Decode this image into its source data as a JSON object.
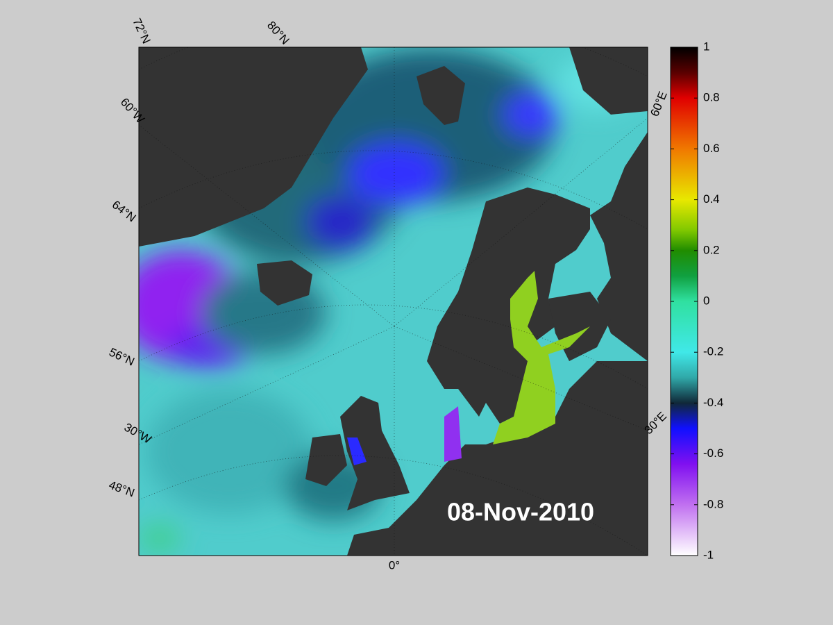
{
  "map": {
    "date": "08-Nov-2010",
    "graticule_labels": [
      "72°N",
      "80°N",
      "60°W",
      "64°N",
      "56°N",
      "30°W",
      "48°N",
      "0°",
      "60°E",
      "30°E"
    ],
    "colorbar": {
      "range": [
        -1,
        1
      ],
      "ticks": [
        1,
        0.8,
        0.6,
        0.4,
        0.2,
        0,
        -0.2,
        -0.4,
        -0.6,
        -0.8,
        -1
      ]
    }
  }
}
